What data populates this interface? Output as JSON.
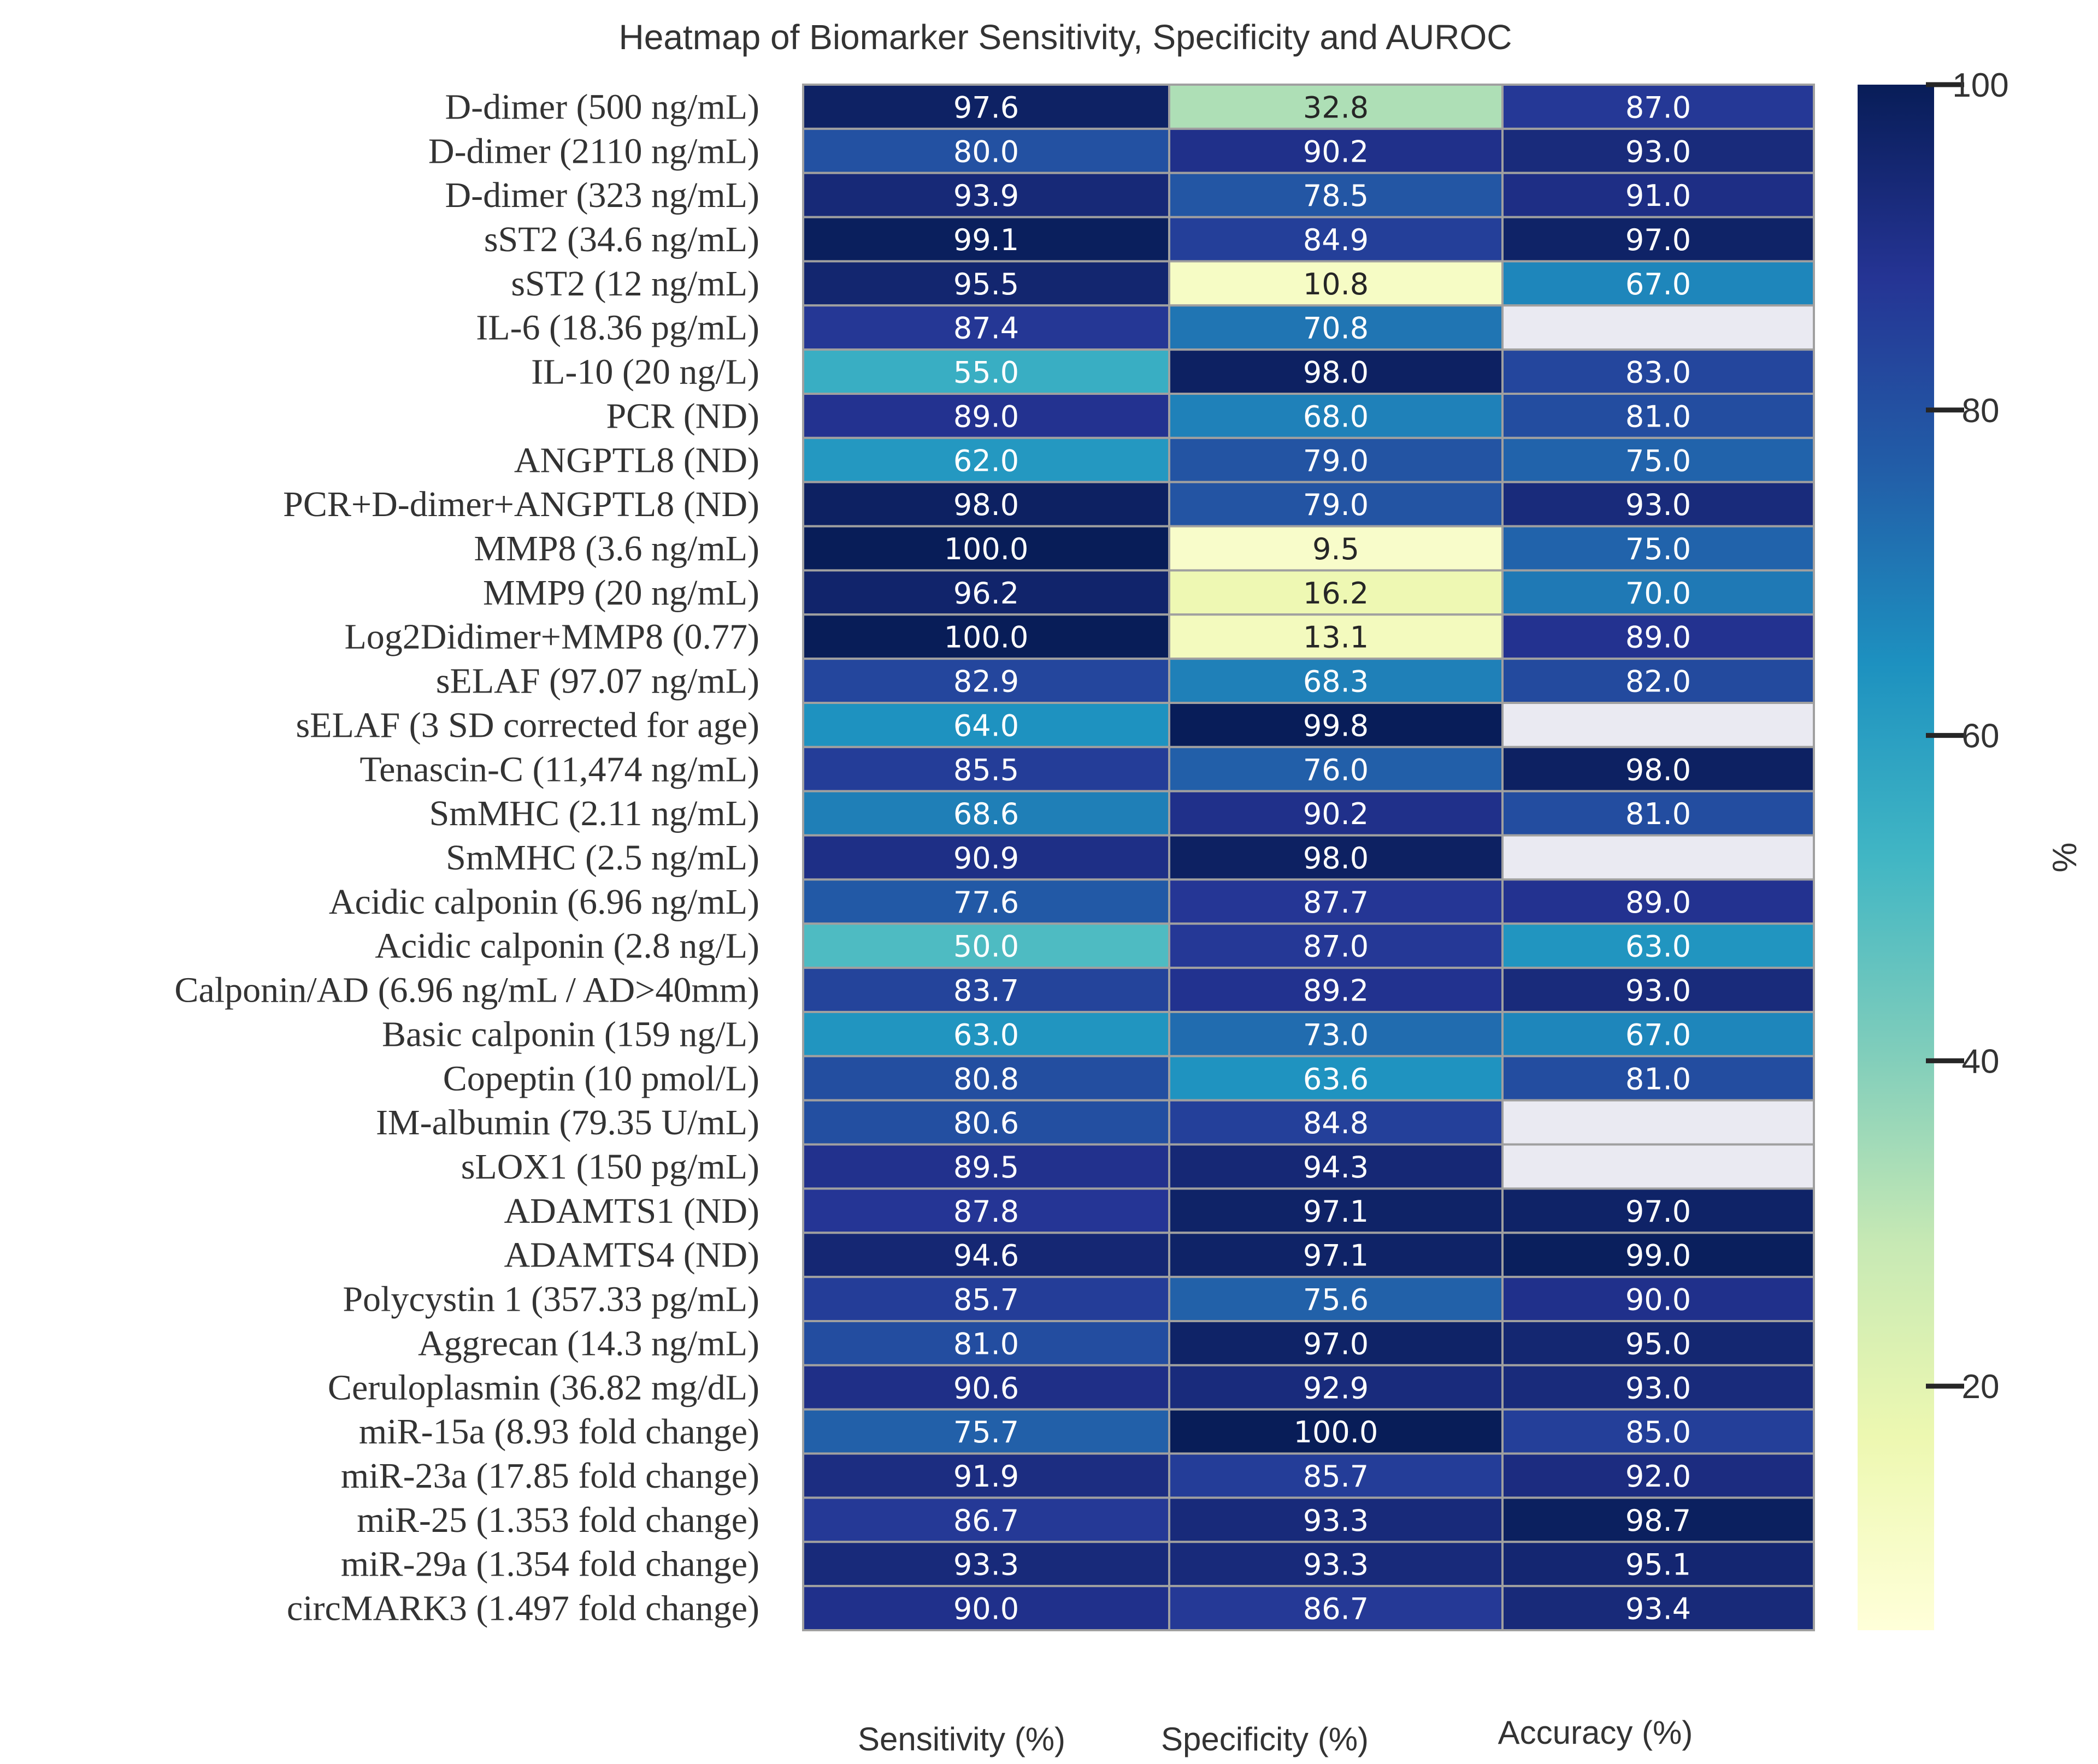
{
  "chart_data": {
    "type": "heatmap",
    "title": "Heatmap of Biomarker Sensitivity, Specificity and AUROC",
    "columns": [
      "Sensitivity (%)",
      "Specificity (%)",
      "Accuracy (%)"
    ],
    "rows": [
      "D-dimer (500 ng/mL)",
      "D-dimer (2110 ng/mL)",
      "D-dimer (323 ng/mL)",
      "sST2 (34.6 ng/mL)",
      "sST2 (12 ng/mL)",
      "IL-6 (18.36 pg/mL)",
      "IL-10 (20 ng/L)",
      "PCR (ND)",
      "ANGPTL8 (ND)",
      "PCR+D-dimer+ANGPTL8 (ND)",
      "MMP8 (3.6 ng/mL)",
      "MMP9 (20 ng/mL)",
      "Log2Didimer+MMP8 (0.77)",
      "sELAF (97.07 ng/mL)",
      "sELAF (3 SD corrected for age)",
      "Tenascin-C (11,474 ng/mL)",
      "SmMHC (2.11 ng/mL)",
      "SmMHC (2.5 ng/mL)",
      "Acidic calponin (6.96 ng/mL)",
      "Acidic calponin (2.8 ng/L)",
      "Calponin/AD (6.96 ng/mL / AD>40mm)",
      "Basic calponin (159 ng/L)",
      "Copeptin (10 pmol/L)",
      "IM-albumin (79.35 U/mL)",
      "sLOX1  (150  pg/mL)",
      "ADAMTS1 (ND)",
      "ADAMTS4 (ND) ",
      "Polycystin 1 (357.33 pg/mL)",
      "Aggrecan (14.3 ng/mL)",
      "Ceruloplasmin (36.82 mg/dL)",
      "miR-15a (8.93 fold change)",
      "miR-23a (17.85 fold change)",
      "miR-25 (1.353 fold change)",
      "miR-29a (1.354 fold change)",
      "circMARK3 (1.497 fold change)"
    ],
    "values": [
      [
        97.6,
        32.8,
        87.0
      ],
      [
        80.0,
        90.2,
        93.0
      ],
      [
        93.9,
        78.5,
        91.0
      ],
      [
        99.1,
        84.9,
        97.0
      ],
      [
        95.5,
        10.8,
        67.0
      ],
      [
        87.4,
        70.8,
        null
      ],
      [
        55.0,
        98.0,
        83.0
      ],
      [
        89.0,
        68.0,
        81.0
      ],
      [
        62.0,
        79.0,
        75.0
      ],
      [
        98.0,
        79.0,
        93.0
      ],
      [
        100.0,
        9.5,
        75.0
      ],
      [
        96.2,
        16.2,
        70.0
      ],
      [
        100.0,
        13.1,
        89.0
      ],
      [
        82.9,
        68.3,
        82.0
      ],
      [
        64.0,
        99.8,
        null
      ],
      [
        85.5,
        76.0,
        98.0
      ],
      [
        68.6,
        90.2,
        81.0
      ],
      [
        90.9,
        98.0,
        null
      ],
      [
        77.6,
        87.7,
        89.0
      ],
      [
        50.0,
        87.0,
        63.0
      ],
      [
        83.7,
        89.2,
        93.0
      ],
      [
        63.0,
        73.0,
        67.0
      ],
      [
        80.8,
        63.6,
        81.0
      ],
      [
        80.6,
        84.8,
        null
      ],
      [
        89.5,
        94.3,
        null
      ],
      [
        87.8,
        97.1,
        97.0
      ],
      [
        94.6,
        97.1,
        99.0
      ],
      [
        85.7,
        75.6,
        90.0
      ],
      [
        81.0,
        97.0,
        95.0
      ],
      [
        90.6,
        92.9,
        93.0
      ],
      [
        75.7,
        100.0,
        85.0
      ],
      [
        91.9,
        85.7,
        92.0
      ],
      [
        86.7,
        93.3,
        98.7
      ],
      [
        93.3,
        93.3,
        95.1
      ],
      [
        90.0,
        86.7,
        93.4
      ]
    ],
    "colormap": "YlGnBu",
    "vmin": 5,
    "vmax": 100,
    "missing_color": "#eaeaf2",
    "grid_color": "#a0a0a0",
    "colorbar": {
      "label": "%",
      "ticks": [
        20,
        40,
        60,
        80,
        100
      ]
    }
  }
}
